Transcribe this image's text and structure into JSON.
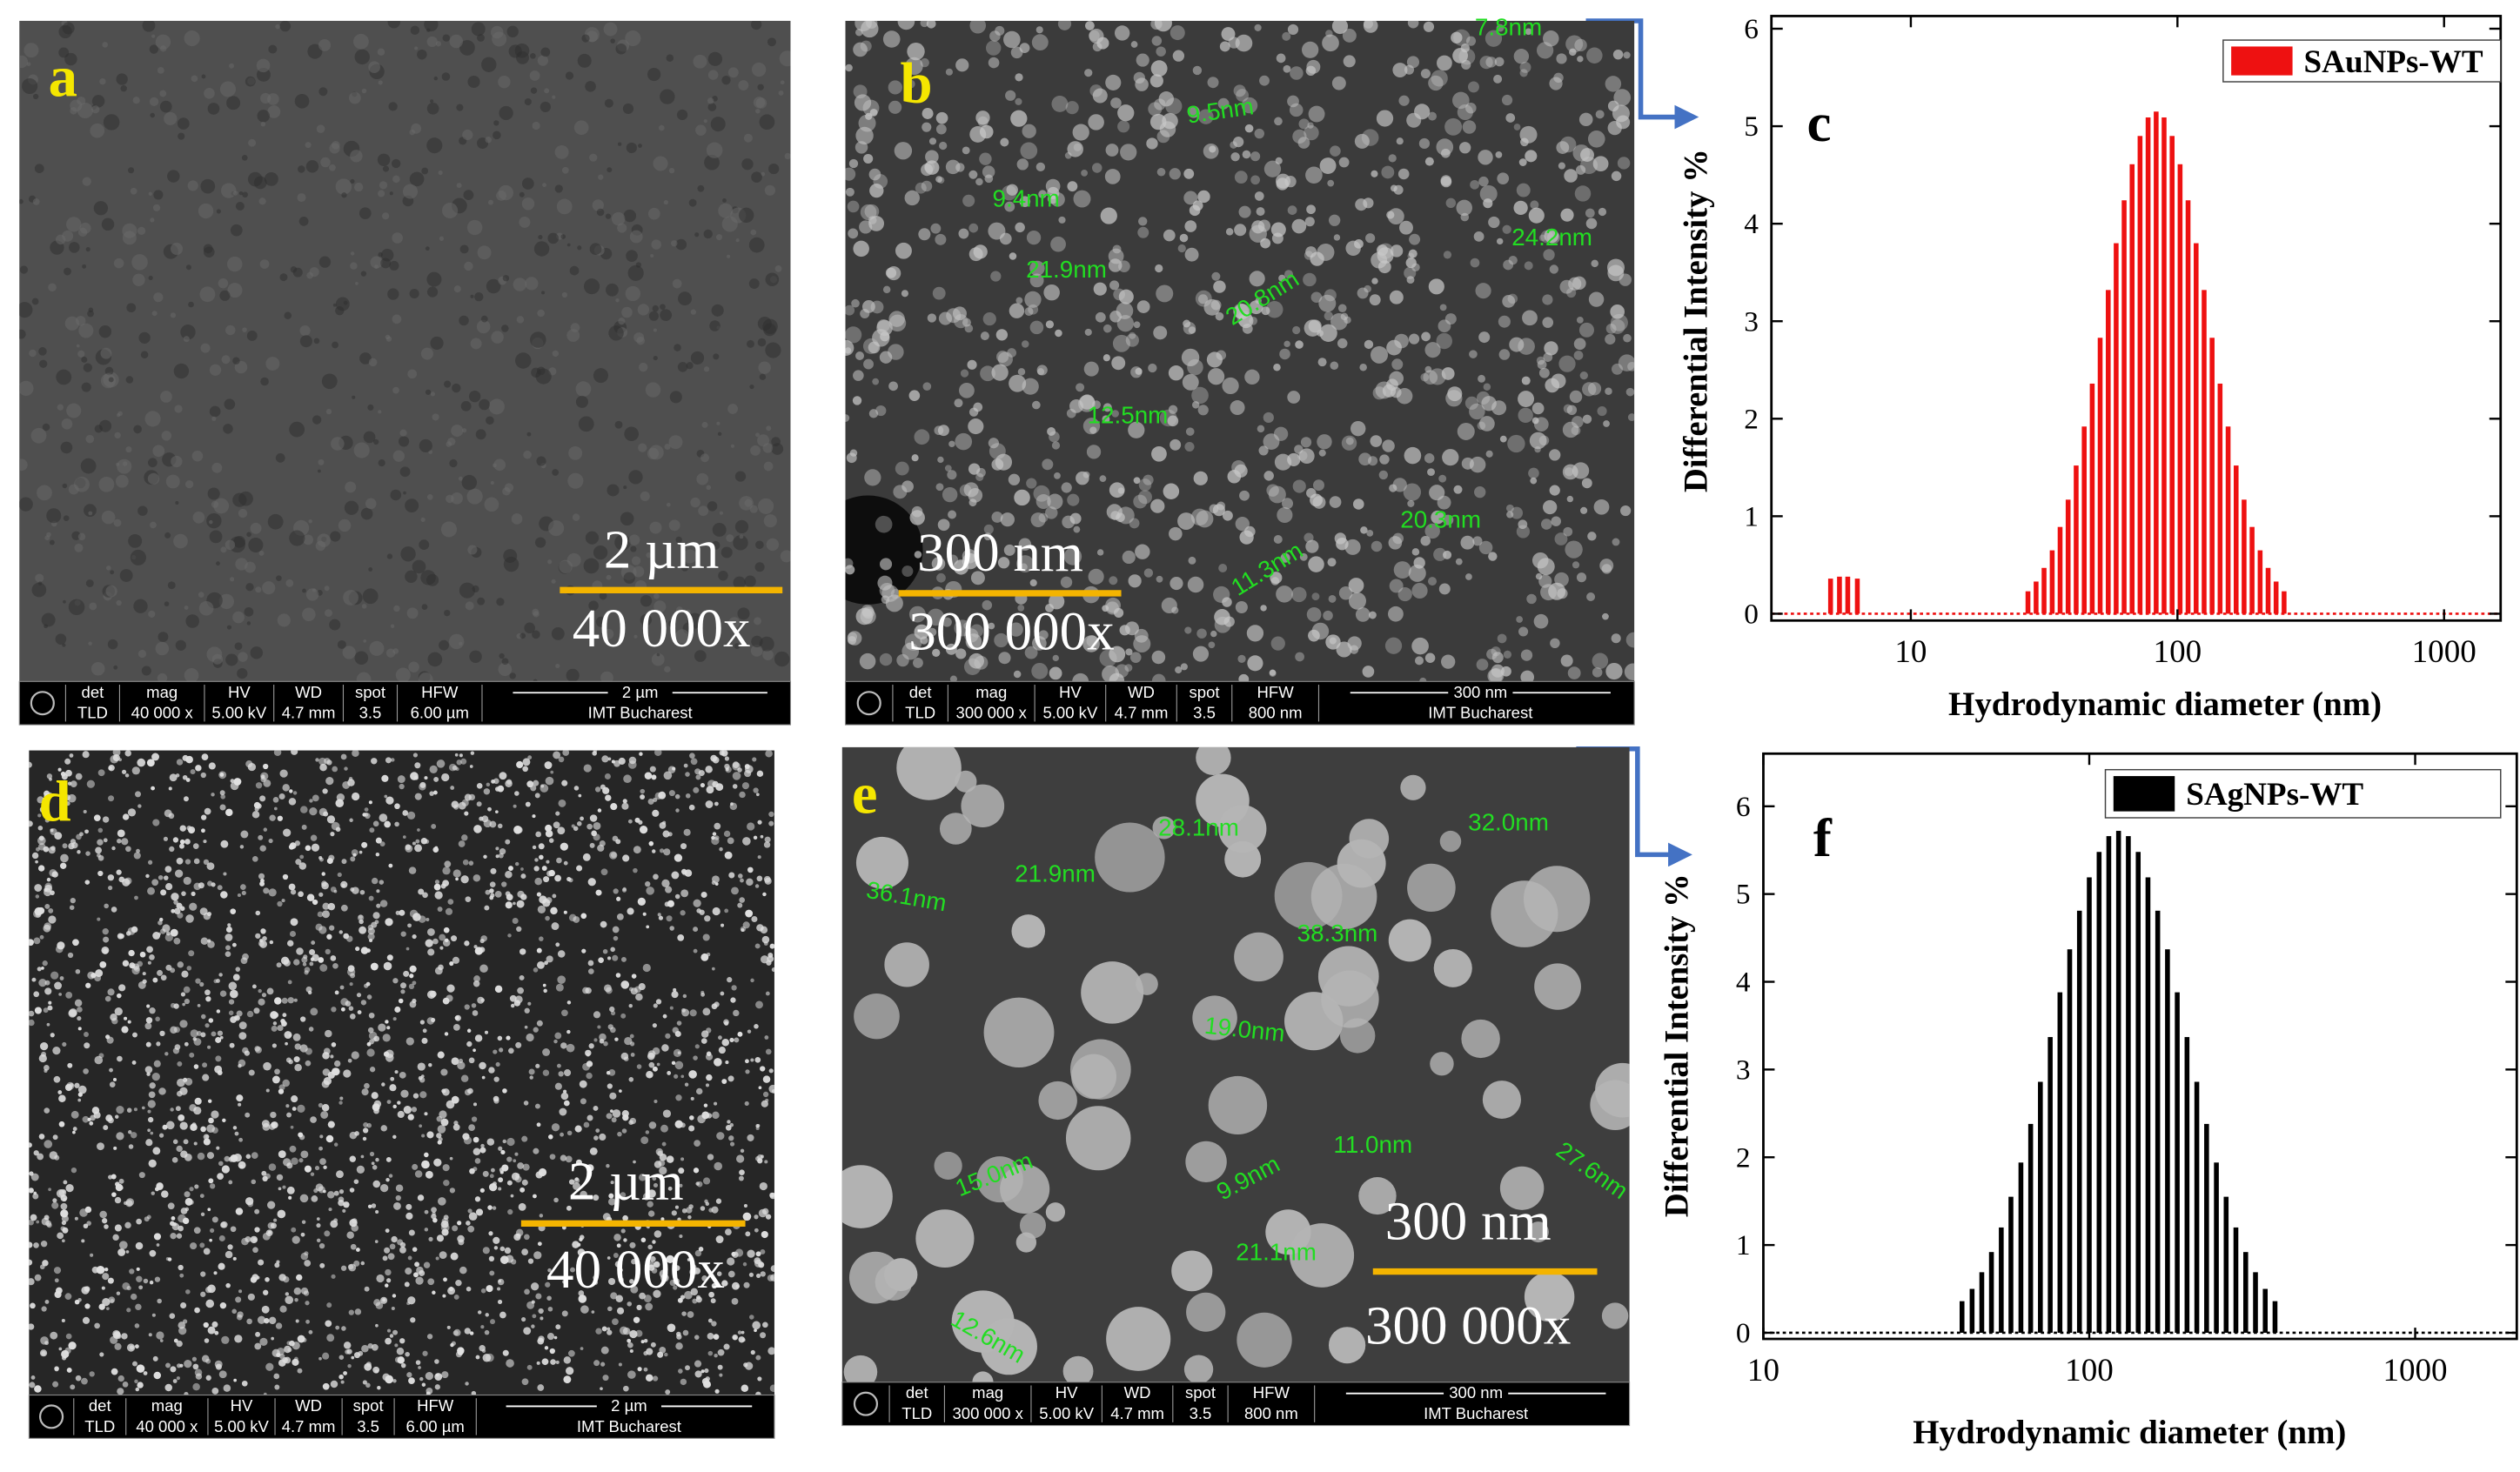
{
  "panels": [
    {
      "label": "a",
      "scale_bar": "2 µm",
      "magnification": "40 000x",
      "measurements": [],
      "info_bar": {
        "headers": [
          "det",
          "mag",
          "HV",
          "WD",
          "spot",
          "HFW"
        ],
        "values": [
          "TLD",
          "40 000 x",
          "5.00 kV",
          "4.7 mm",
          "3.5",
          "6.00 µm"
        ],
        "scale": "2 µm",
        "institution": "IMT Bucharest"
      }
    },
    {
      "label": "b",
      "scale_bar": "300 nm",
      "magnification": "300 000x",
      "measurements": [
        "7.8nm",
        "9.5nm",
        "9.4nm",
        "24.2nm",
        "21.9nm",
        "20.8nm",
        "12.5nm",
        "20.3nm",
        "11.3nm"
      ],
      "info_bar": {
        "headers": [
          "det",
          "mag",
          "HV",
          "WD",
          "spot",
          "HFW"
        ],
        "values": [
          "TLD",
          "300 000 x",
          "5.00 kV",
          "4.7 mm",
          "3.5",
          "800 nm"
        ],
        "scale": "300 nm",
        "institution": "IMT Bucharest"
      }
    },
    {
      "label": "d",
      "scale_bar": "2 µm",
      "magnification": "40 000x",
      "measurements": [],
      "info_bar": {
        "headers": [
          "det",
          "mag",
          "HV",
          "WD",
          "spot",
          "HFW"
        ],
        "values": [
          "TLD",
          "40 000 x",
          "5.00 kV",
          "4.7 mm",
          "3.5",
          "6.00 µm"
        ],
        "scale": "2 µm",
        "institution": "IMT Bucharest"
      }
    },
    {
      "label": "e",
      "scale_bar": "300 nm",
      "magnification": "300 000x",
      "measurements": [
        "28.1nm",
        "32.0nm",
        "36.1nm",
        "21.9nm",
        "38.3nm",
        "19.0nm",
        "15.0nm",
        "9.9nm",
        "11.0nm",
        "27.6nm",
        "21.1nm",
        "12.6nm"
      ],
      "info_bar": {
        "headers": [
          "det",
          "mag",
          "HV",
          "WD",
          "spot",
          "HFW"
        ],
        "values": [
          "TLD",
          "300 000 x",
          "5.00 kV",
          "4.7 mm",
          "3.5",
          "800 nm"
        ],
        "scale": "300 nm",
        "institution": "IMT Bucharest"
      }
    }
  ],
  "chart_data": [
    {
      "type": "bar",
      "label": "c",
      "x_label": "Hydrodynamic diameter (nm)",
      "y_label": "Differential Intensity %",
      "log_x": true,
      "xlim": [
        3,
        1630
      ],
      "xticks": [
        10,
        100,
        1000
      ],
      "ylim": [
        -0.07,
        6.13
      ],
      "yticks": [
        0,
        1,
        2,
        3,
        4,
        5,
        6
      ],
      "legend": "upper right",
      "x": [
        5.0,
        5.4,
        5.8,
        6.3,
        27.5,
        29.5,
        31.6,
        33.9,
        36.3,
        38.9,
        41.7,
        44.7,
        47.9,
        51.3,
        55.0,
        58.9,
        63.1,
        67.6,
        72.4,
        77.6,
        83.2,
        89.1,
        95.5,
        102.3,
        109.6,
        117.5,
        125.9,
        134.9,
        144.5,
        154.9,
        166.0,
        177.8,
        190.5,
        204.2,
        218.8,
        234.4,
        251.2
      ],
      "series": [
        {
          "name": "SAuNPs-WT",
          "color": "#ee1111",
          "values": [
            0.36,
            0.38,
            0.38,
            0.36,
            0.23,
            0.33,
            0.47,
            0.65,
            0.89,
            1.17,
            1.52,
            1.92,
            2.36,
            2.83,
            3.32,
            3.8,
            4.24,
            4.61,
            4.9,
            5.09,
            5.15,
            5.09,
            4.9,
            4.61,
            4.24,
            3.8,
            3.32,
            2.83,
            2.36,
            1.92,
            1.52,
            1.17,
            0.89,
            0.65,
            0.47,
            0.33,
            0.23
          ]
        }
      ]
    },
    {
      "type": "bar",
      "label": "f",
      "x_label": "Hydrodynamic diameter (nm)",
      "y_label": "Differential Intensity %",
      "log_x": true,
      "xlim": [
        10,
        2050
      ],
      "xticks": [
        10,
        100,
        1000
      ],
      "ylim": [
        -0.07,
        6.6
      ],
      "yticks": [
        0,
        1,
        2,
        3,
        4,
        5,
        6
      ],
      "legend": "upper right",
      "x": [
        40.7,
        43.7,
        46.8,
        50.1,
        53.7,
        57.5,
        61.7,
        66.1,
        70.8,
        75.9,
        81.3,
        87.1,
        93.3,
        100,
        107.2,
        114.8,
        123.0,
        131.8,
        141.3,
        151.4,
        162.2,
        173.8,
        186.2,
        199.5,
        213.8,
        229.1,
        245.5,
        263.0,
        281.8,
        302.0,
        323.6,
        346.7,
        371.5
      ],
      "series": [
        {
          "name": "SAgNPs-WT",
          "color": "#000000",
          "values": [
            0.36,
            0.5,
            0.69,
            0.92,
            1.2,
            1.55,
            1.94,
            2.38,
            2.86,
            3.37,
            3.88,
            4.37,
            4.81,
            5.19,
            5.48,
            5.66,
            5.72,
            5.66,
            5.48,
            5.19,
            4.81,
            4.37,
            3.88,
            3.37,
            2.86,
            2.38,
            1.94,
            1.55,
            1.2,
            0.92,
            0.69,
            0.5,
            0.36
          ]
        }
      ]
    }
  ]
}
